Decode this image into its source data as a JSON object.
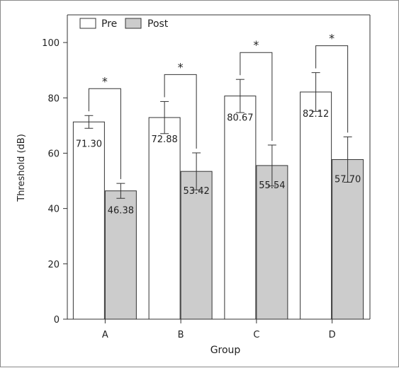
{
  "chart_data": {
    "type": "bar",
    "xlabel": "Group",
    "ylabel": "Threshold (dB)",
    "ylim": [
      0,
      110
    ],
    "yticks": [
      0,
      20,
      40,
      60,
      80,
      100
    ],
    "categories": [
      "A",
      "B",
      "C",
      "D"
    ],
    "legend_position": "top-left",
    "series": [
      {
        "name": "Pre",
        "color": "#ffffff",
        "values": [
          71.3,
          72.88,
          80.67,
          82.12
        ],
        "labels": [
          "71.30",
          "72.88",
          "80.67",
          "82.12"
        ],
        "error": [
          2.3,
          5.8,
          6.0,
          7.0
        ]
      },
      {
        "name": "Post",
        "color": "#cccccc",
        "values": [
          46.38,
          53.42,
          55.54,
          57.7
        ],
        "labels": [
          "46.38",
          "53.42",
          "55.54",
          "57.70"
        ],
        "error": [
          2.7,
          6.7,
          7.4,
          8.2
        ]
      }
    ],
    "significance": [
      "*",
      "*",
      "*",
      "*"
    ],
    "grid": false
  }
}
